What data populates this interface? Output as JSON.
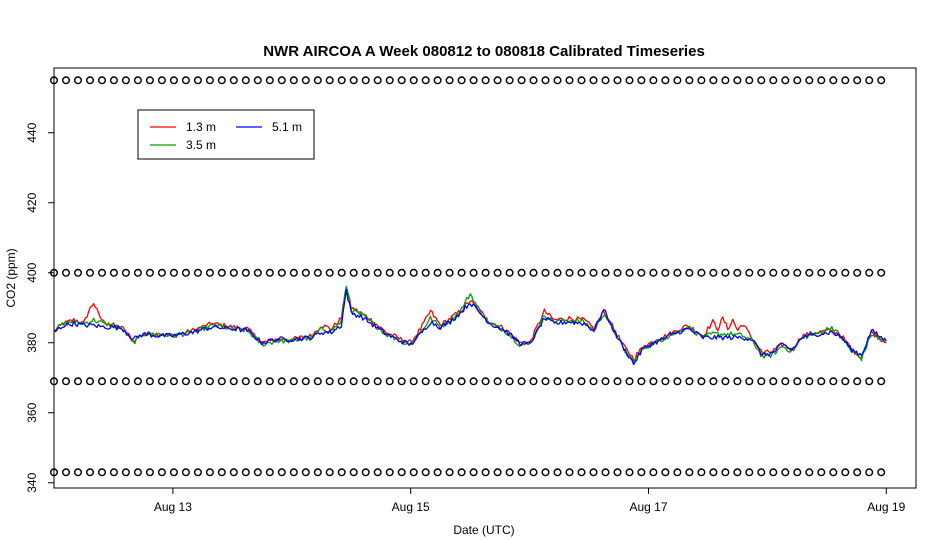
{
  "chart_data": {
    "type": "line",
    "title": "NWR AIRCOA A  Week 080812 to 080818  Calibrated Timeseries",
    "xlabel": "Date (UTC)",
    "ylabel": "CO2 (ppm)",
    "xlim": [
      "2008-08-12T00:00",
      "2008-08-19T06:00"
    ],
    "ylim": [
      338.5,
      458.5
    ],
    "x_ticks": [
      {
        "date": "2008-08-13",
        "label": "Aug 13"
      },
      {
        "date": "2008-08-15",
        "label": "Aug 15"
      },
      {
        "date": "2008-08-17",
        "label": "Aug 17"
      },
      {
        "date": "2008-08-19",
        "label": "Aug 19"
      }
    ],
    "y_ticks": [
      340,
      360,
      380,
      400,
      420,
      440
    ],
    "grid": false,
    "legend": {
      "position": "top-left",
      "entries": [
        {
          "label": "1.3 m",
          "color": "#ff0000"
        },
        {
          "label": "5.1 m",
          "color": "#0000ff"
        },
        {
          "label": "3.5 m",
          "color": "#00a000"
        }
      ]
    },
    "series": [
      {
        "name": "1.3 m",
        "color": "#ff0000",
        "points": [
          [
            "2008-08-12T00:00",
            383.5
          ],
          [
            "2008-08-12T02:00",
            385.5
          ],
          [
            "2008-08-12T04:00",
            386.5
          ],
          [
            "2008-08-12T06:00",
            385.5
          ],
          [
            "2008-08-12T07:00",
            389
          ],
          [
            "2008-08-12T08:00",
            391.5
          ],
          [
            "2008-08-12T09:00",
            388
          ],
          [
            "2008-08-12T10:00",
            386
          ],
          [
            "2008-08-12T12:00",
            385
          ],
          [
            "2008-08-12T14:00",
            384
          ],
          [
            "2008-08-12T16:00",
            380.5
          ],
          [
            "2008-08-12T18:00",
            382.5
          ],
          [
            "2008-08-12T21:00",
            382.5
          ],
          [
            "2008-08-13T00:00",
            382
          ],
          [
            "2008-08-13T04:00",
            383.5
          ],
          [
            "2008-08-13T08:00",
            385.5
          ],
          [
            "2008-08-13T12:00",
            384.5
          ],
          [
            "2008-08-13T15:00",
            384
          ],
          [
            "2008-08-13T18:00",
            380
          ],
          [
            "2008-08-13T21:00",
            381
          ],
          [
            "2008-08-14T00:00",
            381
          ],
          [
            "2008-08-14T04:00",
            382
          ],
          [
            "2008-08-14T06:00",
            385
          ],
          [
            "2008-08-14T08:00",
            384
          ],
          [
            "2008-08-14T10:00",
            387
          ],
          [
            "2008-08-14T11:00",
            396
          ],
          [
            "2008-08-14T12:00",
            390
          ],
          [
            "2008-08-14T14:00",
            388.5
          ],
          [
            "2008-08-14T16:00",
            386.5
          ],
          [
            "2008-08-14T19:00",
            383
          ],
          [
            "2008-08-14T22:00",
            381
          ],
          [
            "2008-08-15T00:00",
            380
          ],
          [
            "2008-08-15T02:00",
            384
          ],
          [
            "2008-08-15T04:00",
            389
          ],
          [
            "2008-08-15T06:00",
            385
          ],
          [
            "2008-08-15T08:00",
            387
          ],
          [
            "2008-08-15T10:00",
            389
          ],
          [
            "2008-08-15T12:00",
            392
          ],
          [
            "2008-08-15T14:00",
            389
          ],
          [
            "2008-08-15T16:00",
            386
          ],
          [
            "2008-08-15T19:00",
            384
          ],
          [
            "2008-08-15T22:00",
            380
          ],
          [
            "2008-08-16T00:00",
            380
          ],
          [
            "2008-08-16T02:00",
            386
          ],
          [
            "2008-08-16T03:00",
            389
          ],
          [
            "2008-08-16T05:00",
            386.5
          ],
          [
            "2008-08-16T08:00",
            387
          ],
          [
            "2008-08-16T11:00",
            386.5
          ],
          [
            "2008-08-16T13:00",
            384
          ],
          [
            "2008-08-16T15:00",
            389
          ],
          [
            "2008-08-16T17:00",
            384
          ],
          [
            "2008-08-16T19:00",
            379
          ],
          [
            "2008-08-16T21:00",
            375.5
          ],
          [
            "2008-08-16T23:00",
            379
          ],
          [
            "2008-08-17T02:00",
            381
          ],
          [
            "2008-08-17T05:00",
            383
          ],
          [
            "2008-08-17T08:00",
            385
          ],
          [
            "2008-08-17T11:00",
            382
          ],
          [
            "2008-08-17T13:00",
            386
          ],
          [
            "2008-08-17T14:00",
            384
          ],
          [
            "2008-08-17T15:00",
            387
          ],
          [
            "2008-08-17T16:00",
            384
          ],
          [
            "2008-08-17T17:00",
            386.5
          ],
          [
            "2008-08-17T18:00",
            383.5
          ],
          [
            "2008-08-17T19:00",
            385.5
          ],
          [
            "2008-08-17T21:00",
            381
          ],
          [
            "2008-08-17T23:00",
            377
          ],
          [
            "2008-08-18T01:00",
            377.5
          ],
          [
            "2008-08-18T03:00",
            379.5
          ],
          [
            "2008-08-18T05:00",
            378
          ],
          [
            "2008-08-18T07:00",
            382
          ],
          [
            "2008-08-18T10:00",
            383
          ],
          [
            "2008-08-18T13:00",
            383.5
          ],
          [
            "2008-08-18T15:00",
            382
          ],
          [
            "2008-08-18T17:00",
            378
          ],
          [
            "2008-08-18T19:00",
            376
          ],
          [
            "2008-08-18T21:00",
            383
          ],
          [
            "2008-08-19T00:00",
            380
          ]
        ]
      },
      {
        "name": "3.5 m",
        "color": "#00a000",
        "points": [
          [
            "2008-08-12T00:00",
            383.5
          ],
          [
            "2008-08-12T02:00",
            385.5
          ],
          [
            "2008-08-12T04:00",
            386
          ],
          [
            "2008-08-12T06:00",
            385.5
          ],
          [
            "2008-08-12T08:00",
            386.5
          ],
          [
            "2008-08-12T10:00",
            385.5
          ],
          [
            "2008-08-12T12:00",
            385
          ],
          [
            "2008-08-12T14:00",
            383.5
          ],
          [
            "2008-08-12T16:00",
            380
          ],
          [
            "2008-08-12T18:00",
            382.5
          ],
          [
            "2008-08-12T21:00",
            382.5
          ],
          [
            "2008-08-13T00:00",
            382
          ],
          [
            "2008-08-13T04:00",
            383
          ],
          [
            "2008-08-13T08:00",
            385
          ],
          [
            "2008-08-13T12:00",
            384
          ],
          [
            "2008-08-13T15:00",
            383.5
          ],
          [
            "2008-08-13T18:00",
            379.5
          ],
          [
            "2008-08-13T21:00",
            380.5
          ],
          [
            "2008-08-14T00:00",
            380.5
          ],
          [
            "2008-08-14T04:00",
            381.5
          ],
          [
            "2008-08-14T06:00",
            384
          ],
          [
            "2008-08-14T08:00",
            383.5
          ],
          [
            "2008-08-14T10:00",
            386
          ],
          [
            "2008-08-14T11:00",
            396.5
          ],
          [
            "2008-08-14T12:00",
            389.5
          ],
          [
            "2008-08-14T14:00",
            388
          ],
          [
            "2008-08-14T16:00",
            386
          ],
          [
            "2008-08-14T19:00",
            382.5
          ],
          [
            "2008-08-14T22:00",
            380.5
          ],
          [
            "2008-08-15T00:00",
            379.5
          ],
          [
            "2008-08-15T02:00",
            383
          ],
          [
            "2008-08-15T04:00",
            387
          ],
          [
            "2008-08-15T06:00",
            384.5
          ],
          [
            "2008-08-15T08:00",
            386.5
          ],
          [
            "2008-08-15T10:00",
            389
          ],
          [
            "2008-08-15T12:00",
            394
          ],
          [
            "2008-08-15T14:00",
            389
          ],
          [
            "2008-08-15T16:00",
            385.5
          ],
          [
            "2008-08-15T19:00",
            383.5
          ],
          [
            "2008-08-15T22:00",
            379.5
          ],
          [
            "2008-08-16T00:00",
            379.5
          ],
          [
            "2008-08-16T02:00",
            385
          ],
          [
            "2008-08-16T03:00",
            388
          ],
          [
            "2008-08-16T05:00",
            386
          ],
          [
            "2008-08-16T08:00",
            386.5
          ],
          [
            "2008-08-16T11:00",
            386
          ],
          [
            "2008-08-16T13:00",
            383.5
          ],
          [
            "2008-08-16T15:00",
            388.5
          ],
          [
            "2008-08-16T17:00",
            383.5
          ],
          [
            "2008-08-16T19:00",
            378
          ],
          [
            "2008-08-16T21:00",
            374.5
          ],
          [
            "2008-08-16T23:00",
            378.5
          ],
          [
            "2008-08-17T02:00",
            380.5
          ],
          [
            "2008-08-17T05:00",
            382.5
          ],
          [
            "2008-08-17T08:00",
            384.5
          ],
          [
            "2008-08-17T11:00",
            381.5
          ],
          [
            "2008-08-17T13:00",
            382.5
          ],
          [
            "2008-08-17T15:00",
            382.5
          ],
          [
            "2008-08-17T17:00",
            382.5
          ],
          [
            "2008-08-17T19:00",
            382
          ],
          [
            "2008-08-17T21:00",
            380.5
          ],
          [
            "2008-08-17T23:00",
            376
          ],
          [
            "2008-08-18T01:00",
            376.5
          ],
          [
            "2008-08-18T03:00",
            379
          ],
          [
            "2008-08-18T05:00",
            377.5
          ],
          [
            "2008-08-18T07:00",
            381.5
          ],
          [
            "2008-08-18T10:00",
            382.5
          ],
          [
            "2008-08-18T13:00",
            384.5
          ],
          [
            "2008-08-18T15:00",
            381.5
          ],
          [
            "2008-08-18T17:00",
            377.5
          ],
          [
            "2008-08-18T19:00",
            375.5
          ],
          [
            "2008-08-18T21:00",
            382.5
          ],
          [
            "2008-08-19T00:00",
            380
          ]
        ]
      },
      {
        "name": "5.1 m",
        "color": "#0000ff",
        "points": [
          [
            "2008-08-12T00:00",
            383
          ],
          [
            "2008-08-12T02:00",
            385
          ],
          [
            "2008-08-12T04:00",
            385.5
          ],
          [
            "2008-08-12T06:00",
            385
          ],
          [
            "2008-08-12T08:00",
            385
          ],
          [
            "2008-08-12T10:00",
            384.5
          ],
          [
            "2008-08-12T12:00",
            384.5
          ],
          [
            "2008-08-12T14:00",
            384
          ],
          [
            "2008-08-12T16:00",
            381
          ],
          [
            "2008-08-12T18:00",
            382.5
          ],
          [
            "2008-08-12T21:00",
            382
          ],
          [
            "2008-08-13T00:00",
            382
          ],
          [
            "2008-08-13T04:00",
            383
          ],
          [
            "2008-08-13T08:00",
            384.5
          ],
          [
            "2008-08-13T12:00",
            384
          ],
          [
            "2008-08-13T15:00",
            383.5
          ],
          [
            "2008-08-13T18:00",
            380
          ],
          [
            "2008-08-13T21:00",
            381
          ],
          [
            "2008-08-14T00:00",
            381
          ],
          [
            "2008-08-14T04:00",
            381.5
          ],
          [
            "2008-08-14T06:00",
            383
          ],
          [
            "2008-08-14T08:00",
            383
          ],
          [
            "2008-08-14T10:00",
            385
          ],
          [
            "2008-08-14T11:00",
            395
          ],
          [
            "2008-08-14T12:00",
            388.5
          ],
          [
            "2008-08-14T14:00",
            387.5
          ],
          [
            "2008-08-14T16:00",
            385.5
          ],
          [
            "2008-08-14T19:00",
            382.5
          ],
          [
            "2008-08-14T22:00",
            380.5
          ],
          [
            "2008-08-15T00:00",
            379.5
          ],
          [
            "2008-08-15T02:00",
            382.5
          ],
          [
            "2008-08-15T04:00",
            386
          ],
          [
            "2008-08-15T06:00",
            384.5
          ],
          [
            "2008-08-15T08:00",
            386
          ],
          [
            "2008-08-15T10:00",
            388.5
          ],
          [
            "2008-08-15T12:00",
            391.5
          ],
          [
            "2008-08-15T14:00",
            388.5
          ],
          [
            "2008-08-15T16:00",
            385.5
          ],
          [
            "2008-08-15T19:00",
            383.5
          ],
          [
            "2008-08-15T22:00",
            380
          ],
          [
            "2008-08-16T00:00",
            379.5
          ],
          [
            "2008-08-16T02:00",
            384.5
          ],
          [
            "2008-08-16T03:00",
            387
          ],
          [
            "2008-08-16T05:00",
            385.5
          ],
          [
            "2008-08-16T08:00",
            386
          ],
          [
            "2008-08-16T11:00",
            385.5
          ],
          [
            "2008-08-16T13:00",
            383.5
          ],
          [
            "2008-08-16T15:00",
            389.5
          ],
          [
            "2008-08-16T17:00",
            383.5
          ],
          [
            "2008-08-16T19:00",
            378.5
          ],
          [
            "2008-08-16T21:00",
            374
          ],
          [
            "2008-08-16T23:00",
            378.5
          ],
          [
            "2008-08-17T02:00",
            380.5
          ],
          [
            "2008-08-17T05:00",
            382.5
          ],
          [
            "2008-08-17T08:00",
            384
          ],
          [
            "2008-08-17T11:00",
            381.5
          ],
          [
            "2008-08-17T13:00",
            381.5
          ],
          [
            "2008-08-17T15:00",
            381.5
          ],
          [
            "2008-08-17T17:00",
            381.5
          ],
          [
            "2008-08-17T19:00",
            381.5
          ],
          [
            "2008-08-17T21:00",
            381
          ],
          [
            "2008-08-17T23:00",
            376.5
          ],
          [
            "2008-08-18T01:00",
            377
          ],
          [
            "2008-08-18T03:00",
            379.5
          ],
          [
            "2008-08-18T05:00",
            378
          ],
          [
            "2008-08-18T07:00",
            381.5
          ],
          [
            "2008-08-18T10:00",
            382.5
          ],
          [
            "2008-08-18T13:00",
            383
          ],
          [
            "2008-08-18T15:00",
            381.5
          ],
          [
            "2008-08-18T17:00",
            378
          ],
          [
            "2008-08-18T19:00",
            376.5
          ],
          [
            "2008-08-18T21:00",
            383.5
          ],
          [
            "2008-08-19T00:00",
            380.5
          ]
        ]
      }
    ],
    "reference_markers": {
      "shape": "circle",
      "color": "#000000",
      "x_start": "2008-08-12T00:00",
      "x_end": "2008-08-19T00:00",
      "interval_hours": 2.42,
      "levels": [
        {
          "y": 455.0
        },
        {
          "y": 400.0
        },
        {
          "y": 369.0
        },
        {
          "y": 343.0
        }
      ]
    }
  }
}
